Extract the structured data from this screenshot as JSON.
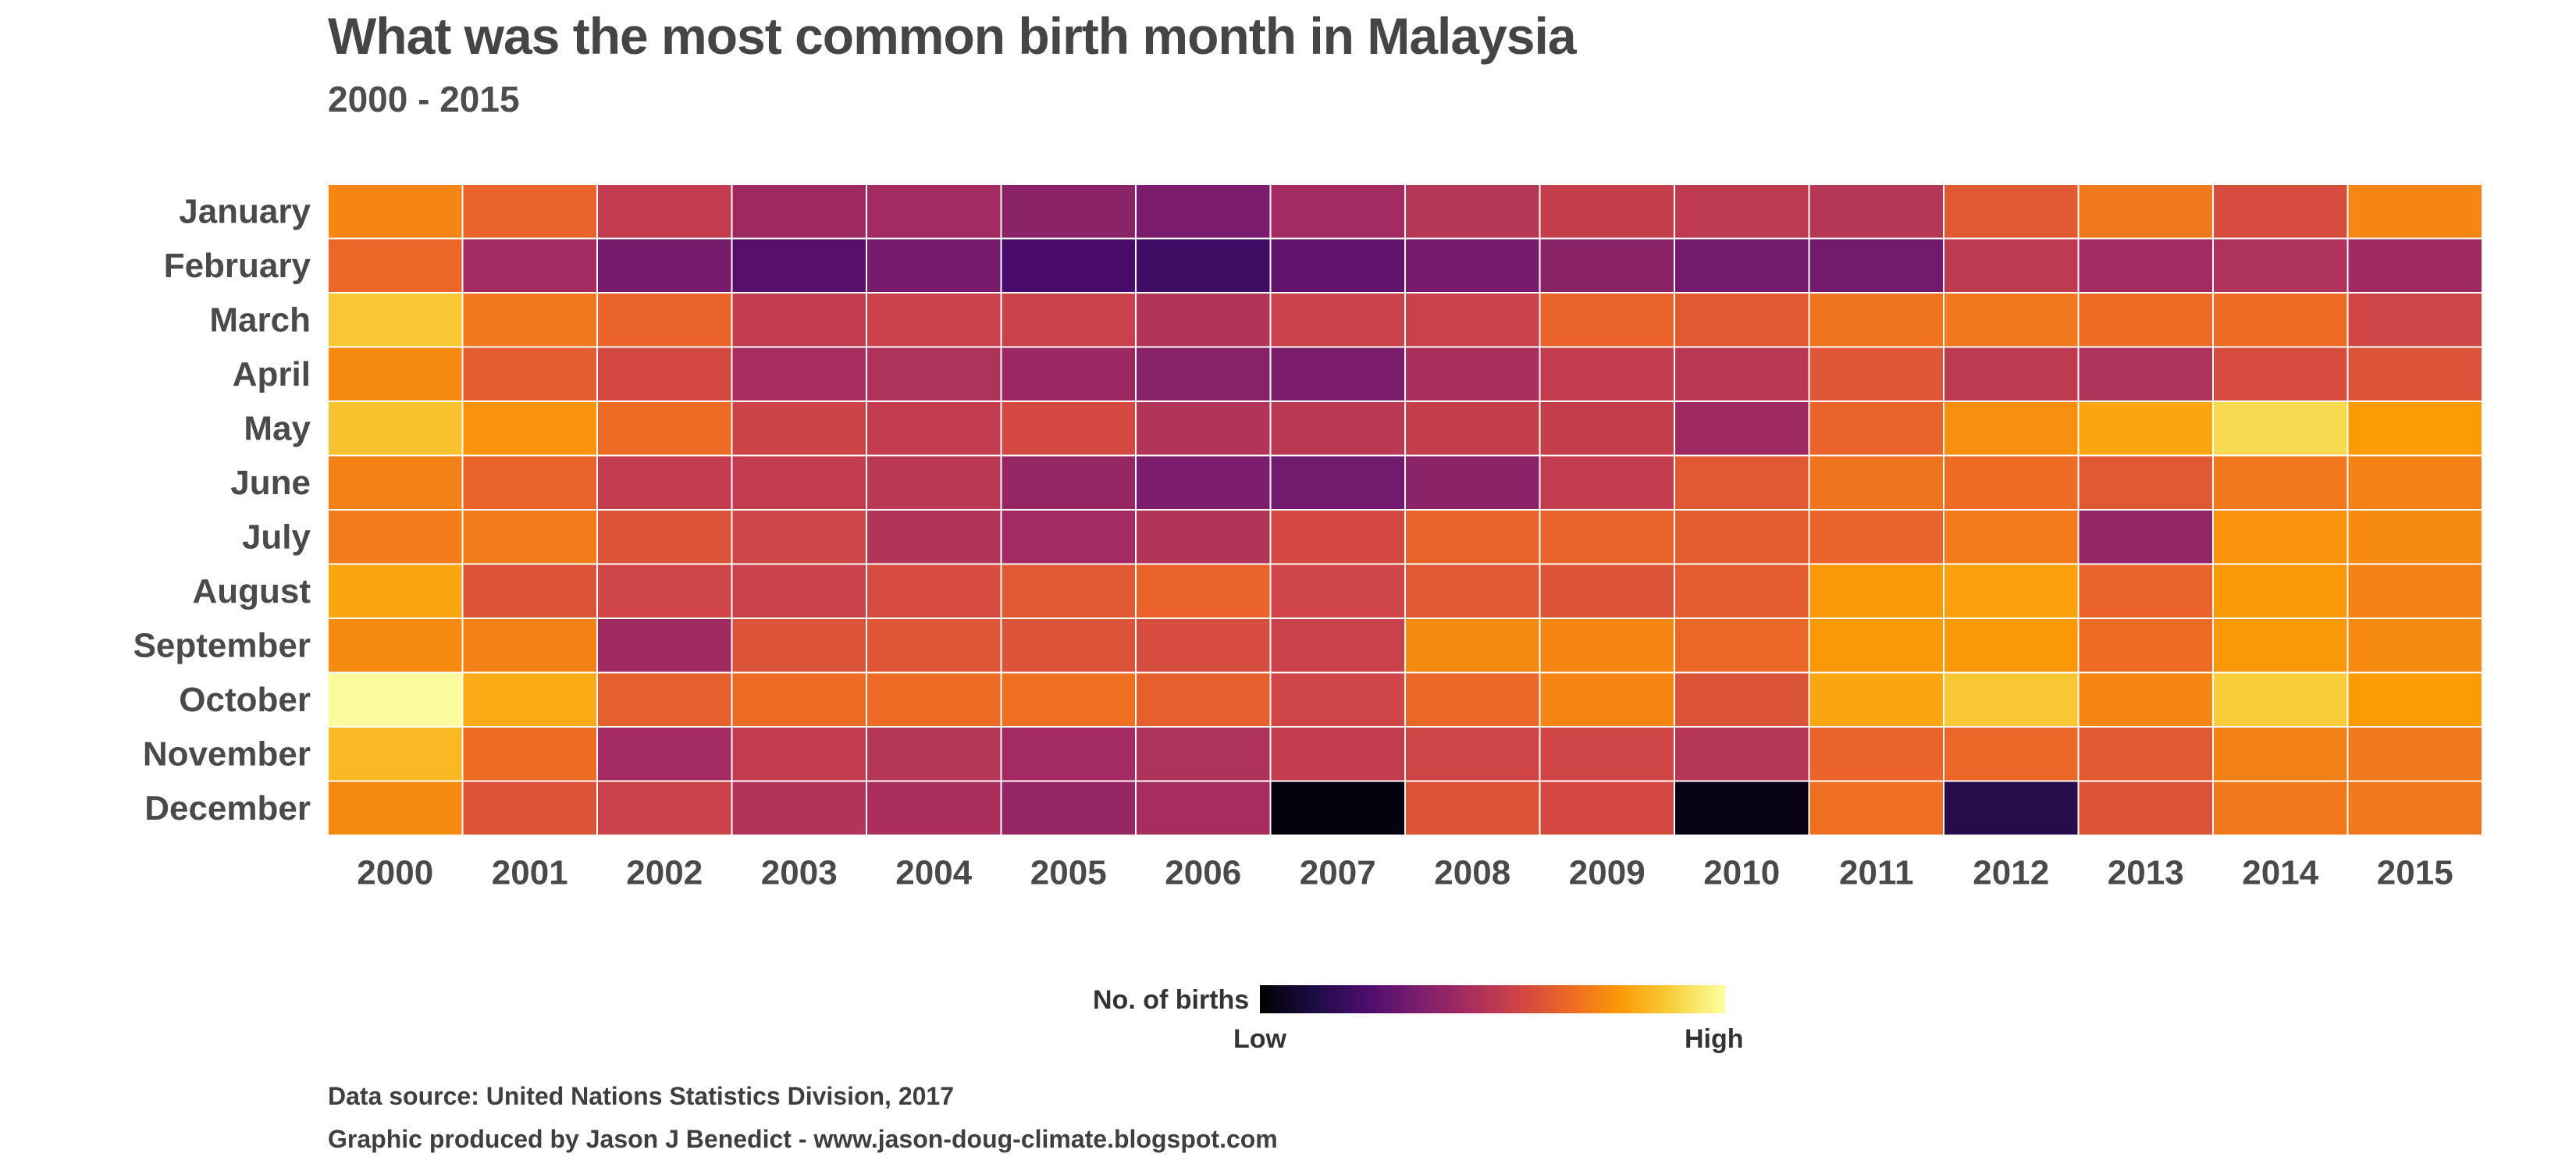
{
  "title": "What was the most common birth month in Malaysia",
  "subtitle": "2000 - 2015",
  "chart_data": {
    "type": "heatmap",
    "title": "What was the most common birth month in Malaysia",
    "subtitle": "2000 - 2015",
    "x": [
      "2000",
      "2001",
      "2002",
      "2003",
      "2004",
      "2005",
      "2006",
      "2007",
      "2008",
      "2009",
      "2010",
      "2011",
      "2012",
      "2013",
      "2014",
      "2015"
    ],
    "y": [
      "January",
      "February",
      "March",
      "April",
      "May",
      "June",
      "July",
      "August",
      "September",
      "October",
      "November",
      "December"
    ],
    "value_scale": "relative 0 (Low) to 1 (High), read from color",
    "values": [
      [
        0.73,
        0.65,
        0.52,
        0.43,
        0.44,
        0.38,
        0.34,
        0.44,
        0.49,
        0.53,
        0.51,
        0.49,
        0.62,
        0.7,
        0.58,
        0.73
      ],
      [
        0.66,
        0.44,
        0.33,
        0.25,
        0.33,
        0.22,
        0.2,
        0.28,
        0.33,
        0.38,
        0.32,
        0.32,
        0.51,
        0.44,
        0.47,
        0.43
      ],
      [
        0.87,
        0.7,
        0.65,
        0.52,
        0.54,
        0.54,
        0.48,
        0.54,
        0.54,
        0.65,
        0.62,
        0.69,
        0.7,
        0.67,
        0.67,
        0.56
      ],
      [
        0.74,
        0.63,
        0.57,
        0.45,
        0.47,
        0.42,
        0.37,
        0.34,
        0.46,
        0.52,
        0.5,
        0.61,
        0.51,
        0.47,
        0.58,
        0.6
      ],
      [
        0.86,
        0.76,
        0.67,
        0.55,
        0.52,
        0.57,
        0.48,
        0.5,
        0.53,
        0.53,
        0.43,
        0.65,
        0.75,
        0.8,
        0.91,
        0.78
      ],
      [
        0.72,
        0.65,
        0.52,
        0.52,
        0.5,
        0.41,
        0.34,
        0.32,
        0.38,
        0.52,
        0.62,
        0.69,
        0.67,
        0.62,
        0.7,
        0.72
      ],
      [
        0.71,
        0.71,
        0.6,
        0.56,
        0.48,
        0.44,
        0.48,
        0.57,
        0.65,
        0.65,
        0.63,
        0.65,
        0.71,
        0.4,
        0.76,
        0.74
      ],
      [
        0.8,
        0.6,
        0.56,
        0.54,
        0.58,
        0.62,
        0.65,
        0.56,
        0.62,
        0.6,
        0.63,
        0.77,
        0.79,
        0.65,
        0.77,
        0.72
      ],
      [
        0.74,
        0.72,
        0.43,
        0.6,
        0.61,
        0.6,
        0.58,
        0.54,
        0.74,
        0.73,
        0.66,
        0.77,
        0.77,
        0.67,
        0.77,
        0.74
      ],
      [
        0.99,
        0.81,
        0.64,
        0.67,
        0.67,
        0.68,
        0.64,
        0.56,
        0.66,
        0.73,
        0.6,
        0.8,
        0.87,
        0.73,
        0.88,
        0.78
      ],
      [
        0.84,
        0.67,
        0.44,
        0.52,
        0.49,
        0.44,
        0.47,
        0.52,
        0.56,
        0.56,
        0.49,
        0.65,
        0.66,
        0.62,
        0.72,
        0.7
      ],
      [
        0.74,
        0.6,
        0.54,
        0.48,
        0.46,
        0.41,
        0.45,
        0.02,
        0.6,
        0.57,
        0.03,
        0.68,
        0.14,
        0.6,
        0.7,
        0.7
      ]
    ],
    "colorscale": "inferno",
    "legend": {
      "title": "No. of births",
      "low_label": "Low",
      "high_label": "High",
      "placement": "bottom"
    },
    "grid": false
  },
  "colors": {
    "background": "#ffffff",
    "cell_border": "#ffffff",
    "scale_stops": [
      "#000004",
      "#1b0c41",
      "#4a0c6b",
      "#781c6d",
      "#a52c60",
      "#cf4446",
      "#ed6925",
      "#fb9b06",
      "#f7d13d",
      "#fcffa4"
    ]
  },
  "legend": {
    "title": "No. of births",
    "low": "Low",
    "high": "High"
  },
  "caption": {
    "source": "Data source: United Nations Statistics Division, 2017",
    "credit": "Graphic produced by Jason J Benedict - www.jason-doug-climate.blogspot.com"
  }
}
